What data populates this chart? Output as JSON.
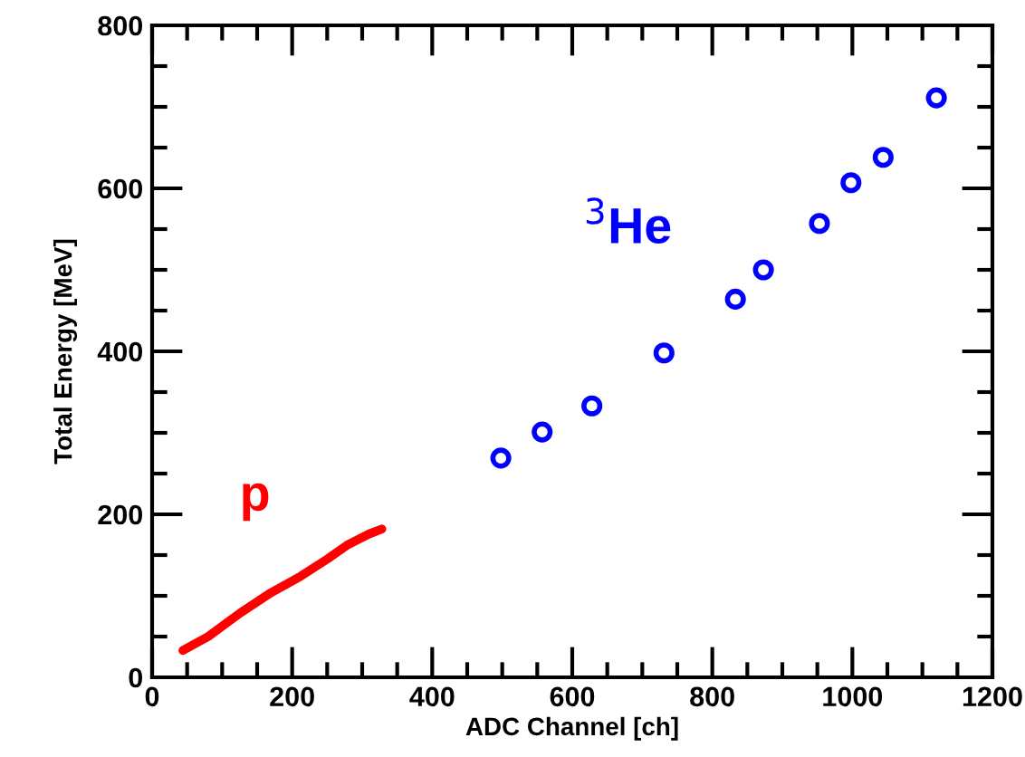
{
  "chart_data": {
    "type": "scatter",
    "xlabel": "ADC Channel [ch]",
    "ylabel": "Total Energy [MeV]",
    "xlim": [
      0,
      1200
    ],
    "ylim": [
      0,
      800
    ],
    "xticks": [
      0,
      200,
      400,
      600,
      800,
      1000,
      1200
    ],
    "yticks": [
      0,
      200,
      400,
      600,
      800
    ],
    "grid": false,
    "legend": false,
    "series": [
      {
        "name": "p",
        "type": "line",
        "color": "#ff0000",
        "line_style": "solid",
        "marker": "none",
        "x": [
          44,
          80,
          126,
          170,
          212,
          250,
          280,
          310,
          328
        ],
        "values": [
          33,
          50,
          79,
          104,
          124,
          145,
          163,
          176,
          182
        ]
      },
      {
        "name": "$^{3}$He",
        "color": "#0000ff",
        "marker": "circle",
        "x": [
          498,
          557,
          628,
          731,
          833,
          873,
          953,
          998,
          1044,
          1120
        ],
        "values": [
          269,
          301,
          333,
          398,
          464,
          500,
          557,
          607,
          638,
          711
        ]
      }
    ]
  }
}
